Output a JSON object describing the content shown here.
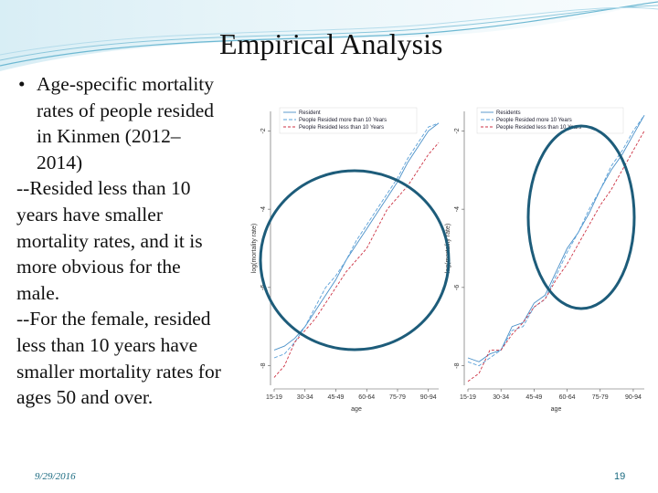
{
  "slide": {
    "title": "Empirical Analysis",
    "bullet_lines": [
      "Age-specific mortality",
      "rates of people resided",
      "in Kinmen (2012–",
      "2014)"
    ],
    "body_lines": [
      "--Resided less than 10",
      "years have smaller",
      "mortality rates, and it is",
      "more obvious for the",
      "male.",
      "--For the female, resided",
      "less than 10 years have",
      "smaller mortality rates for",
      "ages 50 and over."
    ],
    "date": "9/29/2016",
    "page_number": "19",
    "colors": {
      "accent": "#1d5c7a",
      "series_1": "#4a90c8",
      "series_2": "#5aa0d8",
      "series_3": "#cc3344"
    }
  },
  "chart_data": [
    {
      "type": "line",
      "title": "",
      "xlabel": "age",
      "ylabel": "log(mortality rate)",
      "x_ticks": [
        "15-19",
        "30-34",
        "45-49",
        "60-64",
        "75-79",
        "90-94"
      ],
      "y_ticks": [
        "-8",
        "-6",
        "-4",
        "-2"
      ],
      "ylim": [
        -8.5,
        -1.5
      ],
      "categories": [
        "15-19",
        "20-24",
        "25-29",
        "30-34",
        "35-39",
        "40-44",
        "45-49",
        "50-54",
        "55-59",
        "60-64",
        "65-69",
        "70-74",
        "75-79",
        "80-84",
        "85-89",
        "90-94",
        "95-99"
      ],
      "series": [
        {
          "name": "Resident",
          "values": [
            -7.6,
            -7.5,
            -7.3,
            -7.0,
            -6.6,
            -6.2,
            -5.8,
            -5.3,
            -4.9,
            -4.5,
            -4.1,
            -3.7,
            -3.3,
            -2.8,
            -2.4,
            -2.0,
            -1.8
          ]
        },
        {
          "name": "People Resided more than 10 Years",
          "values": [
            -7.8,
            -7.7,
            -7.4,
            -7.0,
            -6.5,
            -6.0,
            -5.7,
            -5.3,
            -4.8,
            -4.4,
            -4.0,
            -3.6,
            -3.2,
            -2.7,
            -2.3,
            -1.9,
            -1.8
          ]
        },
        {
          "name": "People Resided less than 10 Years",
          "values": [
            -8.3,
            -8.0,
            -7.4,
            -7.1,
            -6.8,
            -6.4,
            -6.0,
            -5.6,
            -5.3,
            -5.0,
            -4.5,
            -4.0,
            -3.7,
            -3.4,
            -3.0,
            -2.6,
            -2.3
          ]
        }
      ],
      "legend_position": "top-left",
      "grid": false
    },
    {
      "type": "line",
      "title": "",
      "xlabel": "age",
      "ylabel": "log(mortality rate)",
      "x_ticks": [
        "15-19",
        "30-34",
        "45-49",
        "60-64",
        "75-79",
        "90-94"
      ],
      "y_ticks": [
        "-8",
        "-6",
        "-4",
        "-2"
      ],
      "ylim": [
        -8.5,
        -1.5
      ],
      "categories": [
        "15-19",
        "20-24",
        "25-29",
        "30-34",
        "35-39",
        "40-44",
        "45-49",
        "50-54",
        "55-59",
        "60-64",
        "65-69",
        "70-74",
        "75-79",
        "80-84",
        "85-89",
        "90-94",
        "95-99"
      ],
      "series": [
        {
          "name": "Residents",
          "values": [
            -7.8,
            -7.9,
            -7.7,
            -7.6,
            -7.0,
            -6.9,
            -6.4,
            -6.2,
            -5.6,
            -5.0,
            -4.6,
            -4.1,
            -3.5,
            -3.0,
            -2.6,
            -2.1,
            -1.6
          ]
        },
        {
          "name": "People Resided more 10 Years",
          "values": [
            -7.9,
            -8.0,
            -7.8,
            -7.6,
            -7.1,
            -7.0,
            -6.5,
            -6.3,
            -5.7,
            -5.1,
            -4.6,
            -4.0,
            -3.5,
            -2.9,
            -2.5,
            -2.0,
            -1.6
          ]
        },
        {
          "name": "People Resided less than 10 Years",
          "values": [
            -8.4,
            -8.2,
            -7.6,
            -7.6,
            -7.2,
            -6.9,
            -6.5,
            -6.3,
            -5.8,
            -5.4,
            -4.9,
            -4.4,
            -3.9,
            -3.5,
            -3.0,
            -2.5,
            -2.0
          ]
        }
      ],
      "legend_position": "top-right",
      "grid": false
    }
  ]
}
